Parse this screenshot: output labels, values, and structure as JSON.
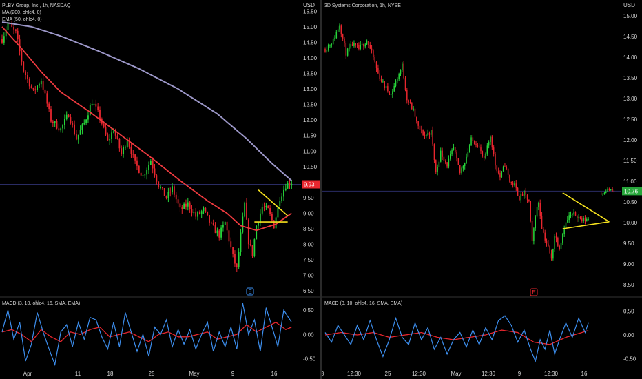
{
  "colors": {
    "background": "#000000",
    "up": "#26d63a",
    "down": "#e8262e",
    "ma200": "#9c97c8",
    "ema50": "#ee3a3f",
    "pattern": "#f5e11e",
    "macd": "#3d8fef",
    "signal": "#e8262e",
    "axis_text": "#d6d6d6",
    "price_line": "#2a2c64",
    "divider": "#333333"
  },
  "chart_data": [
    {
      "type": "candlestick",
      "title": "PLBY Group, Inc., 1h, NASDAQ",
      "currency": "USD",
      "indicators": [
        "MA (200, ohlc4, 0)",
        "EMA (50, ohlc4, 0)"
      ],
      "ylim": [
        6.35,
        15.75
      ],
      "yticks": [
        "15.50",
        "15.00",
        "14.50",
        "14.00",
        "13.50",
        "13.00",
        "12.50",
        "12.00",
        "11.50",
        "11.00",
        "10.50",
        "10.00",
        "9.50",
        "9.00",
        "8.50",
        "8.00",
        "7.50",
        "7.00",
        "6.50"
      ],
      "xticks": [
        "Apr",
        "11",
        "18",
        "25",
        "May",
        "9",
        "16"
      ],
      "last_price": "9.93",
      "last_price_value": 9.93,
      "event_badge": "E",
      "price_keypoints": [
        [
          0,
          14.6
        ],
        [
          3,
          15.1
        ],
        [
          7,
          14.8
        ],
        [
          11,
          13.6
        ],
        [
          16,
          12.9
        ],
        [
          20,
          13.3
        ],
        [
          25,
          12.0
        ],
        [
          30,
          11.7
        ],
        [
          34,
          12.2
        ],
        [
          38,
          11.4
        ],
        [
          42,
          11.9
        ],
        [
          46,
          12.6
        ],
        [
          50,
          12.1
        ],
        [
          54,
          11.3
        ],
        [
          57,
          11.7
        ],
        [
          61,
          10.9
        ],
        [
          64,
          11.4
        ],
        [
          68,
          10.6
        ],
        [
          72,
          10.2
        ],
        [
          76,
          10.7
        ],
        [
          80,
          9.9
        ],
        [
          84,
          9.5
        ],
        [
          87,
          9.8
        ],
        [
          91,
          9.1
        ],
        [
          95,
          9.3
        ],
        [
          99,
          8.9
        ],
        [
          103,
          9.1
        ],
        [
          107,
          8.6
        ],
        [
          111,
          8.3
        ],
        [
          114,
          8.7
        ],
        [
          118,
          7.6
        ],
        [
          120,
          7.2
        ],
        [
          122,
          8.3
        ],
        [
          124,
          9.3
        ],
        [
          126,
          8.1
        ],
        [
          128,
          7.7
        ],
        [
          130,
          8.6
        ],
        [
          133,
          9.2
        ],
        [
          136,
          9.1
        ],
        [
          139,
          8.6
        ],
        [
          142,
          9.5
        ],
        [
          145,
          9.9
        ],
        [
          148,
          10.0
        ]
      ],
      "ma200_keypoints": [
        [
          0,
          15.15
        ],
        [
          15,
          15.0
        ],
        [
          30,
          14.7
        ],
        [
          50,
          14.2
        ],
        [
          70,
          13.65
        ],
        [
          90,
          13.0
        ],
        [
          110,
          12.2
        ],
        [
          125,
          11.4
        ],
        [
          138,
          10.6
        ],
        [
          148,
          10.05
        ]
      ],
      "ema50_keypoints": [
        [
          0,
          15.0
        ],
        [
          10,
          14.3
        ],
        [
          20,
          13.55
        ],
        [
          30,
          12.9
        ],
        [
          45,
          12.25
        ],
        [
          60,
          11.55
        ],
        [
          75,
          10.85
        ],
        [
          90,
          10.1
        ],
        [
          105,
          9.4
        ],
        [
          115,
          9.0
        ],
        [
          122,
          8.6
        ],
        [
          130,
          8.45
        ],
        [
          140,
          8.65
        ],
        [
          148,
          9.0
        ]
      ],
      "pattern_lines": [
        [
          [
            131,
            9.75
          ],
          [
            146,
            8.92
          ]
        ],
        [
          [
            129,
            8.72
          ],
          [
            146,
            8.72
          ]
        ]
      ],
      "macd": {
        "title": "MACD (3, 10, ohlc4, 16, SMA, EMA)",
        "ylim": [
          -0.72,
          0.7
        ],
        "yticks": [
          "0.50",
          "0.00",
          "-0.50"
        ],
        "macd_keypoints": [
          [
            0,
            0.05
          ],
          [
            3,
            0.5
          ],
          [
            6,
            -0.1
          ],
          [
            9,
            0.25
          ],
          [
            12,
            -0.55
          ],
          [
            15,
            -0.2
          ],
          [
            18,
            0.45
          ],
          [
            21,
            0.05
          ],
          [
            24,
            -0.3
          ],
          [
            27,
            -0.62
          ],
          [
            30,
            0.05
          ],
          [
            33,
            0.2
          ],
          [
            36,
            -0.25
          ],
          [
            39,
            0.25
          ],
          [
            42,
            -0.1
          ],
          [
            45,
            0.35
          ],
          [
            48,
            0.3
          ],
          [
            51,
            -0.05
          ],
          [
            54,
            -0.3
          ],
          [
            57,
            0.25
          ],
          [
            60,
            -0.25
          ],
          [
            63,
            0.45
          ],
          [
            66,
            0.05
          ],
          [
            69,
            -0.35
          ],
          [
            72,
            0.0
          ],
          [
            75,
            -0.45
          ],
          [
            78,
            0.15
          ],
          [
            81,
            0.0
          ],
          [
            84,
            0.3
          ],
          [
            87,
            -0.25
          ],
          [
            90,
            0.1
          ],
          [
            93,
            -0.2
          ],
          [
            96,
            0.1
          ],
          [
            99,
            -0.3
          ],
          [
            102,
            0.0
          ],
          [
            105,
            0.25
          ],
          [
            108,
            -0.35
          ],
          [
            111,
            0.05
          ],
          [
            114,
            -0.25
          ],
          [
            117,
            0.15
          ],
          [
            120,
            -0.3
          ],
          [
            123,
            0.65
          ],
          [
            126,
            0.0
          ],
          [
            129,
            0.3
          ],
          [
            132,
            -0.35
          ],
          [
            135,
            0.55
          ],
          [
            138,
            0.15
          ],
          [
            141,
            -0.25
          ],
          [
            144,
            0.5
          ],
          [
            148,
            0.25
          ]
        ],
        "signal_keypoints": [
          [
            0,
            0.05
          ],
          [
            5,
            0.1
          ],
          [
            10,
            0.0
          ],
          [
            15,
            -0.15
          ],
          [
            20,
            0.1
          ],
          [
            25,
            -0.05
          ],
          [
            30,
            -0.15
          ],
          [
            35,
            0.05
          ],
          [
            40,
            0.0
          ],
          [
            45,
            0.1
          ],
          [
            50,
            0.15
          ],
          [
            55,
            -0.05
          ],
          [
            60,
            0.0
          ],
          [
            65,
            0.05
          ],
          [
            70,
            -0.05
          ],
          [
            75,
            -0.15
          ],
          [
            80,
            0.0
          ],
          [
            85,
            0.05
          ],
          [
            90,
            -0.05
          ],
          [
            95,
            -0.05
          ],
          [
            100,
            0.0
          ],
          [
            105,
            0.05
          ],
          [
            110,
            -0.1
          ],
          [
            115,
            -0.05
          ],
          [
            120,
            0.0
          ],
          [
            125,
            0.2
          ],
          [
            130,
            0.05
          ],
          [
            135,
            0.15
          ],
          [
            140,
            0.25
          ],
          [
            145,
            0.1
          ],
          [
            148,
            0.15
          ]
        ]
      }
    },
    {
      "type": "candlestick",
      "title": "3D Systems Corporation, 1h, NYSE",
      "currency": "USD",
      "ylim": [
        8.25,
        15.3
      ],
      "yticks": [
        "15.00",
        "14.50",
        "14.00",
        "13.50",
        "13.00",
        "12.50",
        "12.00",
        "11.50",
        "11.00",
        "10.50",
        "10.00",
        "9.50",
        "9.00",
        "8.50"
      ],
      "xticks": [
        "8",
        "12:30",
        "25",
        "12:30",
        "May",
        "12:30",
        "9",
        "12:30",
        "16"
      ],
      "last_price": "10.76",
      "last_price_value": 10.76,
      "event_badge": "E",
      "price_keypoints": [
        [
          0,
          14.2
        ],
        [
          5,
          14.4
        ],
        [
          9,
          14.8
        ],
        [
          13,
          14.1
        ],
        [
          17,
          14.3
        ],
        [
          21,
          14.2
        ],
        [
          26,
          14.4
        ],
        [
          30,
          14.0
        ],
        [
          33,
          13.6
        ],
        [
          37,
          13.3
        ],
        [
          41,
          13.1
        ],
        [
          45,
          13.5
        ],
        [
          48,
          13.8
        ],
        [
          51,
          13.0
        ],
        [
          55,
          12.7
        ],
        [
          58,
          12.3
        ],
        [
          62,
          12.1
        ],
        [
          66,
          12.2
        ],
        [
          69,
          11.2
        ],
        [
          72,
          11.7
        ],
        [
          76,
          11.4
        ],
        [
          80,
          11.8
        ],
        [
          84,
          11.2
        ],
        [
          88,
          11.6
        ],
        [
          91,
          12.0
        ],
        [
          95,
          11.9
        ],
        [
          99,
          11.5
        ],
        [
          103,
          12.1
        ],
        [
          106,
          11.4
        ],
        [
          109,
          11.1
        ],
        [
          112,
          11.4
        ],
        [
          115,
          11.0
        ],
        [
          118,
          10.9
        ],
        [
          121,
          10.6
        ],
        [
          124,
          10.7
        ],
        [
          127,
          10.5
        ],
        [
          129,
          9.5
        ],
        [
          131,
          10.2
        ],
        [
          133,
          10.5
        ],
        [
          135,
          9.9
        ],
        [
          137,
          9.6
        ],
        [
          139,
          9.4
        ],
        [
          141,
          9.1
        ],
        [
          143,
          9.7
        ],
        [
          146,
          9.4
        ],
        [
          149,
          9.9
        ],
        [
          152,
          10.15
        ],
        [
          156,
          10.2
        ],
        [
          160,
          10.05
        ],
        [
          164,
          10.1
        ]
      ],
      "gap_keypoints": [
        [
          172,
          10.7
        ],
        [
          176,
          10.8
        ],
        [
          180,
          10.76
        ]
      ],
      "pattern_lines": [
        [
          [
            148,
            10.72
          ],
          [
            177,
            10.02
          ]
        ],
        [
          [
            148,
            9.85
          ],
          [
            177,
            10.02
          ]
        ]
      ],
      "macd": {
        "title": "MACD (3, 10, ohlc4, 16, SMA, EMA)",
        "ylim": [
          -0.72,
          0.72
        ],
        "yticks": [
          "0.50",
          "0.00",
          "-0.50"
        ],
        "macd_keypoints": [
          [
            0,
            0.05
          ],
          [
            4,
            -0.15
          ],
          [
            8,
            0.2
          ],
          [
            12,
            0.0
          ],
          [
            16,
            -0.2
          ],
          [
            20,
            0.2
          ],
          [
            24,
            -0.1
          ],
          [
            28,
            0.3
          ],
          [
            32,
            -0.1
          ],
          [
            36,
            -0.45
          ],
          [
            40,
            -0.1
          ],
          [
            44,
            0.35
          ],
          [
            48,
            -0.05
          ],
          [
            52,
            -0.2
          ],
          [
            56,
            0.25
          ],
          [
            60,
            -0.1
          ],
          [
            64,
            0.15
          ],
          [
            68,
            -0.3
          ],
          [
            72,
            -0.05
          ],
          [
            76,
            -0.4
          ],
          [
            80,
            -0.1
          ],
          [
            84,
            0.05
          ],
          [
            88,
            -0.25
          ],
          [
            92,
            0.1
          ],
          [
            96,
            -0.2
          ],
          [
            100,
            0.15
          ],
          [
            104,
            -0.1
          ],
          [
            108,
            0.3
          ],
          [
            112,
            0.4
          ],
          [
            116,
            0.2
          ],
          [
            120,
            -0.15
          ],
          [
            124,
            0.1
          ],
          [
            128,
            -0.3
          ],
          [
            131,
            -0.55
          ],
          [
            134,
            -0.1
          ],
          [
            137,
            -0.3
          ],
          [
            140,
            0.1
          ],
          [
            143,
            -0.4
          ],
          [
            146,
            -0.1
          ],
          [
            150,
            0.25
          ],
          [
            154,
            -0.05
          ],
          [
            158,
            0.35
          ],
          [
            162,
            0.05
          ],
          [
            166,
            0.45
          ],
          [
            170,
            0.25
          ],
          [
            174,
            0.1
          ],
          [
            178,
            0.35
          ],
          [
            181,
            0.25
          ]
        ],
        "signal_keypoints": [
          [
            0,
            0.0
          ],
          [
            10,
            0.05
          ],
          [
            20,
            0.0
          ],
          [
            30,
            0.05
          ],
          [
            40,
            -0.05
          ],
          [
            50,
            0.0
          ],
          [
            60,
            0.05
          ],
          [
            70,
            -0.05
          ],
          [
            80,
            -0.1
          ],
          [
            90,
            -0.05
          ],
          [
            100,
            0.0
          ],
          [
            110,
            0.1
          ],
          [
            120,
            0.05
          ],
          [
            130,
            -0.15
          ],
          [
            140,
            -0.2
          ],
          [
            150,
            -0.05
          ],
          [
            160,
            0.05
          ],
          [
            170,
            0.15
          ],
          [
            181,
            0.18
          ]
        ]
      }
    }
  ]
}
